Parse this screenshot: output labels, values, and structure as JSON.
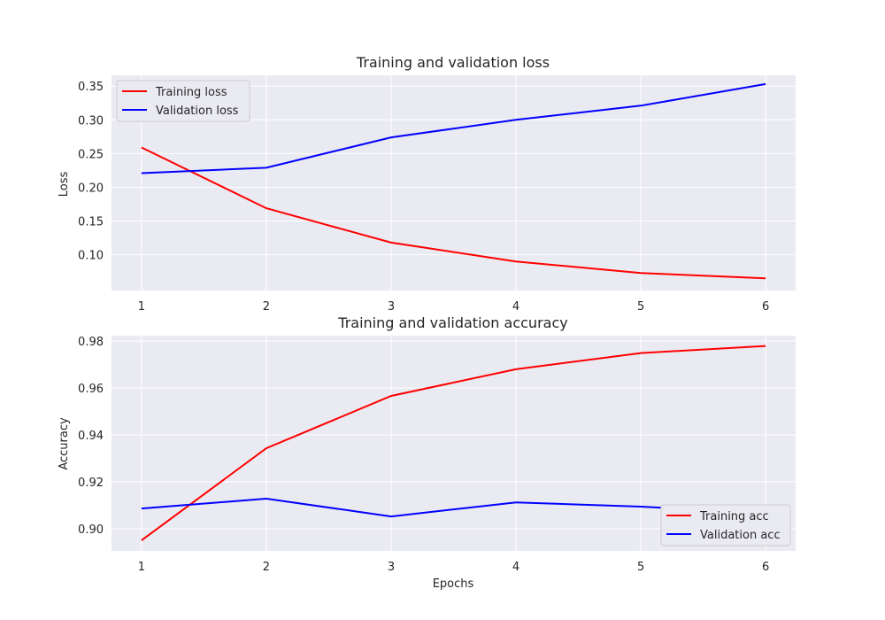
{
  "chart_data": [
    {
      "type": "line",
      "title": "Training and validation loss",
      "xlabel": "",
      "ylabel": "Loss",
      "x": [
        1,
        2,
        3,
        4,
        5,
        6
      ],
      "xticks": [
        "1",
        "2",
        "3",
        "4",
        "5",
        "6"
      ],
      "xlim": [
        0.76,
        6.24
      ],
      "ylim": [
        0.047,
        0.366
      ],
      "yticks": [
        "0.10",
        "0.15",
        "0.20",
        "0.25",
        "0.30",
        "0.35"
      ],
      "ytick_values": [
        0.1,
        0.15,
        0.2,
        0.25,
        0.3,
        0.35
      ],
      "grid": true,
      "legend_position": "top-left",
      "series": [
        {
          "name": "Training loss",
          "color": "#ff0000",
          "values": [
            0.259,
            0.169,
            0.118,
            0.09,
            0.073,
            0.065
          ]
        },
        {
          "name": "Validation loss",
          "color": "#0000ff",
          "values": [
            0.221,
            0.229,
            0.274,
            0.3,
            0.321,
            0.353
          ]
        }
      ]
    },
    {
      "type": "line",
      "title": "Training and validation accuracy",
      "xlabel": "Epochs",
      "ylabel": "Accuracy",
      "x": [
        1,
        2,
        3,
        4,
        5,
        6
      ],
      "xticks": [
        "1",
        "2",
        "3",
        "4",
        "5",
        "6"
      ],
      "xlim": [
        0.76,
        6.24
      ],
      "ylim": [
        0.8905,
        0.9823
      ],
      "yticks": [
        "0.90",
        "0.92",
        "0.94",
        "0.96",
        "0.98"
      ],
      "ytick_values": [
        0.9,
        0.92,
        0.94,
        0.96,
        0.98
      ],
      "grid": true,
      "legend_position": "bottom-right",
      "series": [
        {
          "name": "Training acc",
          "color": "#ff0000",
          "values": [
            0.895,
            0.9343,
            0.9566,
            0.968,
            0.9749,
            0.9779
          ]
        },
        {
          "name": "Validation acc",
          "color": "#0000ff",
          "values": [
            0.9086,
            0.9128,
            0.9052,
            0.9112,
            0.9094,
            0.9066
          ]
        }
      ]
    }
  ]
}
